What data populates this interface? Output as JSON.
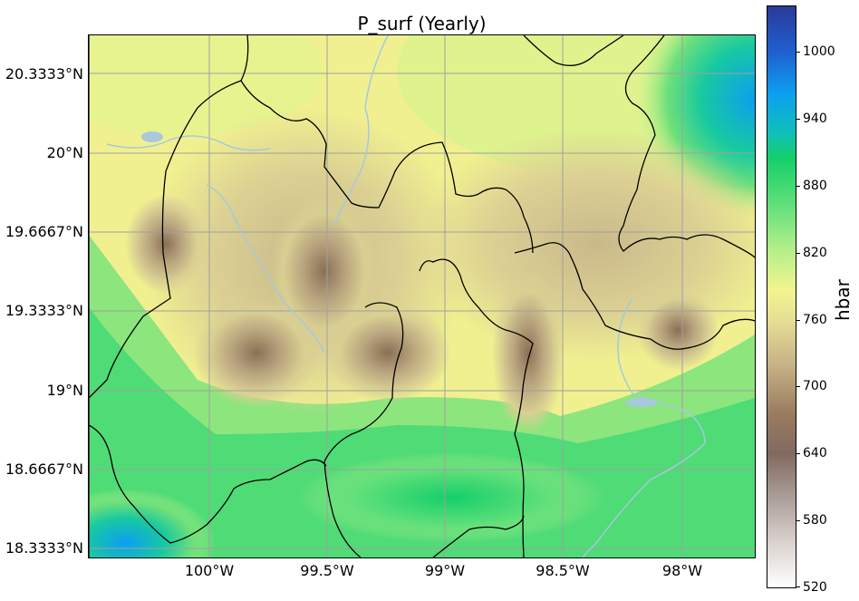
{
  "title": "P_surf (Yearly)",
  "chart_data": {
    "type": "heatmap",
    "title": "P_surf (Yearly)",
    "x_ticks": [
      "100°W",
      "99.5°W",
      "99°W",
      "98.5°W",
      "98°W"
    ],
    "y_ticks": [
      "20.3333°N",
      "20°N",
      "19.6667°N",
      "19.3333°N",
      "19°N",
      "18.6667°N",
      "18.3333°N"
    ],
    "colorbar": {
      "label": "hbar",
      "range": [
        520,
        1040
      ],
      "ticks": [
        "1000",
        "940",
        "880",
        "820",
        "760",
        "700",
        "640",
        "580",
        "520"
      ]
    },
    "grid": true
  },
  "colors": {
    "low_pressure": "#7f6a5a",
    "mid_pressure": "#f2f08f",
    "high_pressure": "#14cf6a",
    "very_high": "#0d9ff0",
    "border": "#000000",
    "river": "#a8c8dc"
  }
}
